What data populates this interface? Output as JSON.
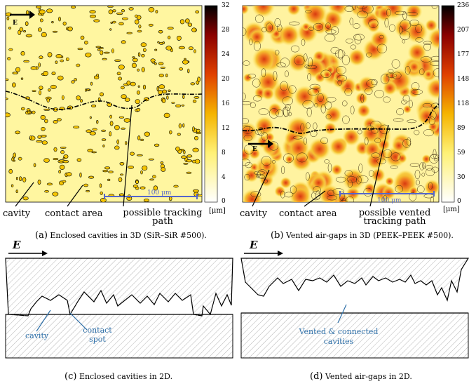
{
  "panel_a": {
    "field_label": "E",
    "scale_label": "100 μm",
    "labels": {
      "cavity": "cavity",
      "contact": "contact area",
      "path": "possible tracking path"
    },
    "caption": {
      "letter": "(a)",
      "text": "Enclosed cavities in 3D (SiR–SiR #500)."
    },
    "colorbar": {
      "ticks": [
        "32",
        "28",
        "24",
        "20",
        "16",
        "12",
        "8",
        "4",
        "0"
      ],
      "unit": "[μm]"
    }
  },
  "panel_b": {
    "field_label": "E",
    "scale_label": "100 μm",
    "labels": {
      "cavity": "cavity",
      "contact": "contact area",
      "path": "possible vented tracking path"
    },
    "caption": {
      "letter": "(b)",
      "text": "Vented air-gaps in 3D (PEEK–PEEK #500)."
    },
    "colorbar": {
      "ticks": [
        "236",
        "207",
        "177",
        "148",
        "118",
        "89",
        "59",
        "30",
        "0"
      ],
      "unit": "[μm]"
    }
  },
  "panel_c": {
    "field_label": "E",
    "labels": {
      "cavity": "cavity",
      "contact": "contact spot"
    },
    "caption": {
      "letter": "(c)",
      "text": "Enclosed cavities in 2D."
    }
  },
  "panel_d": {
    "field_label": "E",
    "labels": {
      "vented": "Vented & connected cavities"
    },
    "caption": {
      "letter": "(d)",
      "text": "Vented air-gaps in 2D."
    }
  },
  "colors": {
    "annotation_blue": "#2e6fa8",
    "scale_bar": "#5566cc",
    "yellow_bg": "#fff79a",
    "spot_fill": "#f5c400"
  }
}
